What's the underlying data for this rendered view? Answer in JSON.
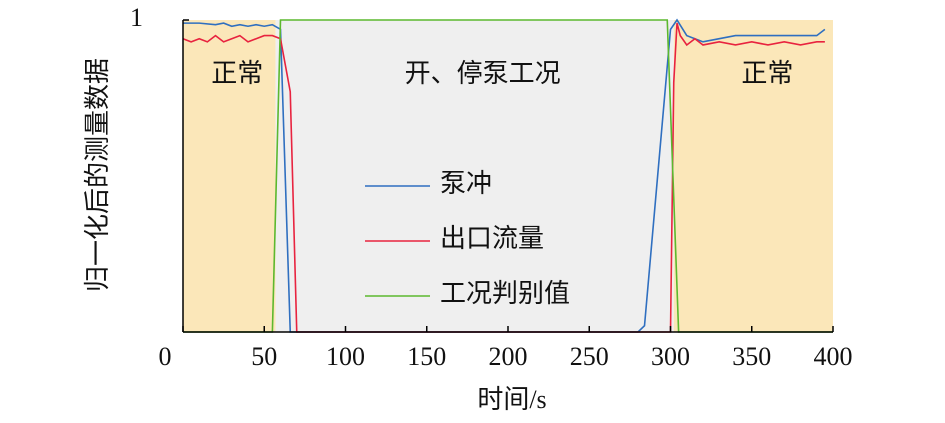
{
  "chart_data": {
    "type": "line",
    "xlabel": "时间/s",
    "ylabel": "归一化后的测量数据",
    "xlim": [
      0,
      400
    ],
    "ylim": [
      0,
      1
    ],
    "xticks": [
      0,
      50,
      100,
      150,
      200,
      250,
      300,
      350,
      400
    ],
    "yticks": [
      1
    ],
    "regions": [
      {
        "start": 0,
        "end": 57,
        "label": "正常",
        "color": "#fbe7b9"
      },
      {
        "start": 57,
        "end": 302,
        "label": "开、停泵工况",
        "color": "#efefef"
      },
      {
        "start": 302,
        "end": 400,
        "label": "正常",
        "color": "#fbe7b9"
      }
    ],
    "series": [
      {
        "name": "泵冲",
        "color": "#2f6fc0",
        "x": [
          0,
          10,
          20,
          25,
          30,
          35,
          40,
          45,
          50,
          55,
          60,
          66,
          280,
          284,
          300,
          304,
          310,
          315,
          320,
          330,
          340,
          350,
          360,
          370,
          380,
          390,
          395
        ],
        "values": [
          0.99,
          0.99,
          0.985,
          0.99,
          0.98,
          0.985,
          0.98,
          0.985,
          0.98,
          0.985,
          0.97,
          0,
          0,
          0.02,
          0.97,
          1.0,
          0.95,
          0.94,
          0.93,
          0.94,
          0.95,
          0.95,
          0.95,
          0.95,
          0.95,
          0.95,
          0.97
        ]
      },
      {
        "name": "出口流量",
        "color": "#e8233f",
        "x": [
          0,
          5,
          10,
          15,
          20,
          25,
          30,
          35,
          40,
          45,
          50,
          55,
          60,
          66,
          70,
          300,
          302,
          304,
          306,
          310,
          315,
          320,
          330,
          340,
          350,
          360,
          370,
          380,
          390,
          395
        ],
        "values": [
          0.94,
          0.93,
          0.94,
          0.93,
          0.95,
          0.93,
          0.94,
          0.95,
          0.93,
          0.94,
          0.95,
          0.95,
          0.94,
          0.77,
          0,
          0,
          0.8,
          0.99,
          0.95,
          0.92,
          0.94,
          0.92,
          0.93,
          0.92,
          0.93,
          0.92,
          0.93,
          0.92,
          0.93,
          0.93
        ]
      },
      {
        "name": "工况判别值",
        "color": "#5cb82e",
        "x": [
          0,
          55,
          60,
          298,
          305,
          400
        ],
        "values": [
          0,
          0,
          1,
          1,
          0,
          0
        ]
      }
    ]
  }
}
